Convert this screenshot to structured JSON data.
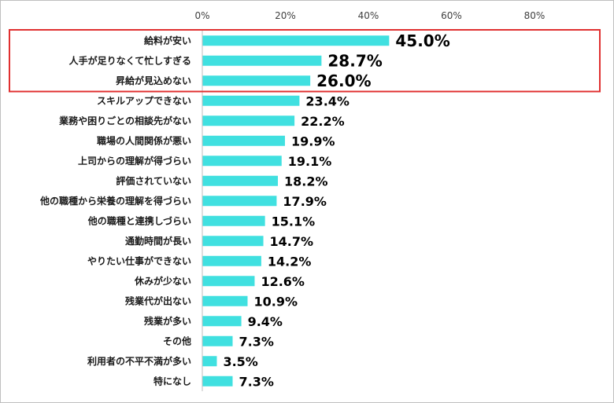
{
  "chart_data": {
    "type": "bar",
    "orientation": "horizontal",
    "categories": [
      "給料が安い",
      "人手が足りなくて忙しすぎる",
      "昇給が見込めない",
      "スキルアップできない",
      "業務や困りごとの相談先がない",
      "職場の人間関係が悪い",
      "上司からの理解が得づらい",
      "評価されていない",
      "他の職種から栄養の理解を得づらい",
      "他の職種と連携しづらい",
      "通勤時間が長い",
      "やりたい仕事ができない",
      "休みが少ない",
      "残業代が出ない",
      "残業が多い",
      "その他",
      "利用者の不平不満が多い",
      "特になし"
    ],
    "values": [
      45.0,
      28.7,
      26.0,
      23.4,
      22.2,
      19.9,
      19.1,
      18.2,
      17.9,
      15.1,
      14.7,
      14.2,
      12.6,
      10.9,
      9.4,
      7.3,
      3.5,
      7.3
    ],
    "value_labels": [
      "45.0%",
      "28.7%",
      "26.0%",
      "23.4%",
      "22.2%",
      "19.9%",
      "19.1%",
      "18.2%",
      "17.9%",
      "15.1%",
      "14.7%",
      "14.2%",
      "12.6%",
      "10.9%",
      "9.4%",
      "7.3%",
      "3.5%",
      "7.3%"
    ],
    "x_ticks": [
      "0%",
      "20%",
      "40%",
      "60%",
      "80%"
    ],
    "xlim": [
      0,
      80
    ],
    "grid": false,
    "legend": "none",
    "bar_color": "#40e0e0",
    "highlight": {
      "categories_count": 3,
      "color": "#e03030"
    }
  }
}
